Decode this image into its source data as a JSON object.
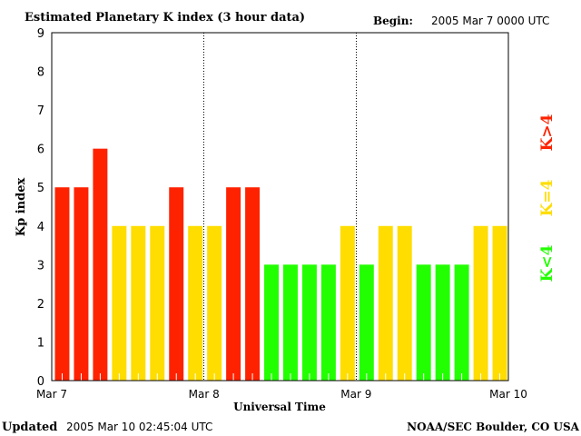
{
  "chart_data": {
    "type": "bar",
    "title": "Estimated Planetary K index (3 hour data)",
    "begin_label": "Begin:",
    "begin_value": "2005 Mar 7 0000 UTC",
    "xlabel": "Universal Time",
    "ylabel": "Kp index",
    "ylim": [
      0,
      9
    ],
    "yticks": [
      "0",
      "1",
      "2",
      "3",
      "4",
      "5",
      "6",
      "7",
      "8",
      "9"
    ],
    "xticks": [
      "Mar 7",
      "Mar 8",
      "Mar 9",
      "Mar 10"
    ],
    "values": [
      5,
      5,
      6,
      4,
      4,
      4,
      5,
      4,
      4,
      5,
      5,
      3,
      3,
      3,
      3,
      4,
      3,
      4,
      4,
      3,
      3,
      3,
      4,
      4
    ],
    "colors": {
      "low": "#22ff00",
      "mid": "#ffdd00",
      "high": "#ff2200"
    },
    "legend": [
      {
        "label": "K<4",
        "color": "#22ff00"
      },
      {
        "label": "K=4",
        "color": "#ffdd00"
      },
      {
        "label": "K>4",
        "color": "#ff2200"
      }
    ]
  },
  "footer": {
    "updated_label": "Updated",
    "updated_value": "2005 Mar 10 02:45:04 UTC",
    "source": "NOAA/SEC Boulder, CO USA"
  }
}
